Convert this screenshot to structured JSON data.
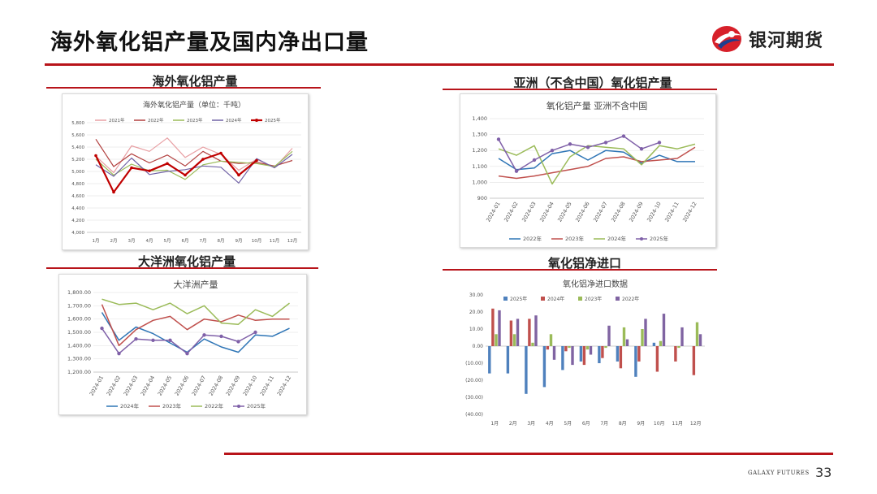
{
  "header": {
    "title": "海外氧化铝产量及国内净出口量"
  },
  "logo": {
    "text": "银河期货",
    "colors": {
      "red": "#d7202a",
      "blue": "#1d3f8f"
    }
  },
  "footer": {
    "brand": "GALAXY FUTURES",
    "page_number": "33"
  },
  "sections": [
    {
      "title": "海外氧化铝产量"
    },
    {
      "title": "亚洲（不含中国）氧化铝产量"
    },
    {
      "title": "大洋洲氧化铝产量"
    },
    {
      "title": "氧化铝净进口"
    }
  ],
  "chart_data": [
    {
      "type": "line",
      "title": "海外氧化铝产量（单位：千吨）",
      "categories": [
        "1月",
        "2月",
        "3月",
        "4月",
        "5月",
        "6月",
        "7月",
        "8月",
        "9月",
        "10月",
        "11月",
        "12月"
      ],
      "ylim": [
        4000,
        5800
      ],
      "yticks": [
        "4,000",
        "4,200",
        "4,400",
        "4,600",
        "4,800",
        "5,000",
        "5,200",
        "5,400",
        "5,600",
        "5,800"
      ],
      "legend": "top",
      "series": [
        {
          "name": "2021年",
          "color": "#e8a0a4",
          "width": 1.2,
          "marker": false,
          "values": [
            5250,
            4980,
            5420,
            5330,
            5550,
            5230,
            5400,
            5280,
            5020,
            5200,
            5060,
            5380
          ]
        },
        {
          "name": "2022年",
          "color": "#b2403f",
          "width": 1.2,
          "marker": false,
          "values": [
            5530,
            5080,
            5290,
            5140,
            5270,
            5090,
            5330,
            5170,
            5130,
            5150,
            5090,
            5180
          ]
        },
        {
          "name": "2023年",
          "color": "#9bbb59",
          "width": 1.2,
          "marker": false,
          "values": [
            5200,
            4940,
            5120,
            5010,
            5020,
            4870,
            5110,
            5170,
            5150,
            5130,
            5080,
            5330
          ]
        },
        {
          "name": "2024年",
          "color": "#7162a6",
          "width": 1.2,
          "marker": false,
          "values": [
            5110,
            4920,
            5220,
            4950,
            5000,
            5030,
            5090,
            5070,
            4810,
            5210,
            5060,
            5280
          ]
        },
        {
          "name": "2025年",
          "color": "#c00000",
          "width": 2.2,
          "marker": true,
          "values": [
            5260,
            4660,
            5060,
            5010,
            5130,
            4940,
            5200,
            5300,
            4940,
            5180,
            null,
            null
          ]
        }
      ]
    },
    {
      "type": "line",
      "title": "氧化铝产量 亚洲不含中国",
      "categories": [
        "2024-01",
        "2024-02",
        "2024-03",
        "2024-04",
        "2024-05",
        "2024-06",
        "2024-07",
        "2024-08",
        "2024-09",
        "2024-10",
        "2024-11",
        "2024-12"
      ],
      "ylim": [
        900,
        1400
      ],
      "yticks": [
        "900",
        "1,000",
        "1,100",
        "1,200",
        "1,300",
        "1,400"
      ],
      "legend": "bottom",
      "series": [
        {
          "name": "2022年",
          "color": "#2e75b6",
          "width": 1.5,
          "marker": false,
          "values": [
            1150,
            1080,
            1090,
            1180,
            1200,
            1140,
            1200,
            1190,
            1120,
            1170,
            1130,
            1130
          ]
        },
        {
          "name": "2023年",
          "color": "#c0504d",
          "width": 1.5,
          "marker": false,
          "values": [
            1040,
            1025,
            1040,
            1060,
            1080,
            1100,
            1150,
            1160,
            1130,
            1140,
            1150,
            1220
          ]
        },
        {
          "name": "2024年",
          "color": "#9bbb59",
          "width": 1.5,
          "marker": false,
          "values": [
            1210,
            1170,
            1230,
            990,
            1160,
            1230,
            1220,
            1210,
            1110,
            1230,
            1210,
            1240
          ]
        },
        {
          "name": "2025年",
          "color": "#7f60a8",
          "width": 1.5,
          "marker": true,
          "values": [
            1270,
            1070,
            1140,
            1200,
            1240,
            1220,
            1250,
            1290,
            1210,
            1250,
            null,
            null
          ]
        }
      ]
    },
    {
      "type": "line",
      "title": "大洋洲产量",
      "categories": [
        "2024-01",
        "2024-02",
        "2024-03",
        "2024-04",
        "2024-05",
        "2024-06",
        "2024-07",
        "2024-08",
        "2024-09",
        "2024-10",
        "2024-11",
        "2024-12"
      ],
      "ylim": [
        1200,
        1800
      ],
      "yticks": [
        "1,200.00",
        "1,300.00",
        "1,400.00",
        "1,500.00",
        "1,600.00",
        "1,700.00",
        "1,800.00"
      ],
      "legend": "bottom",
      "series": [
        {
          "name": "2024年",
          "color": "#2e75b6",
          "width": 1.5,
          "marker": false,
          "values": [
            1650,
            1440,
            1540,
            1490,
            1420,
            1350,
            1450,
            1390,
            1350,
            1480,
            1470,
            1530
          ]
        },
        {
          "name": "2023年",
          "color": "#c0504d",
          "width": 1.5,
          "marker": false,
          "values": [
            1710,
            1400,
            1520,
            1590,
            1620,
            1520,
            1600,
            1580,
            1630,
            1590,
            1600,
            1600
          ]
        },
        {
          "name": "2022年",
          "color": "#9bbb59",
          "width": 1.5,
          "marker": false,
          "values": [
            1750,
            1710,
            1720,
            1670,
            1720,
            1640,
            1700,
            1570,
            1560,
            1670,
            1620,
            1720
          ]
        },
        {
          "name": "2025年",
          "color": "#7f60a8",
          "width": 1.5,
          "marker": true,
          "values": [
            1530,
            1340,
            1450,
            1440,
            1440,
            1340,
            1480,
            1470,
            1430,
            1500,
            null,
            null
          ]
        }
      ]
    },
    {
      "type": "bar",
      "title": "氧化铝净进口数据",
      "categories": [
        "1月",
        "2月",
        "3月",
        "4月",
        "5月",
        "6月",
        "7月",
        "8月",
        "9月",
        "10月",
        "11月",
        "12月"
      ],
      "ylim": [
        -40,
        30
      ],
      "yticks": [
        "(40.00)",
        "(30.00)",
        "(20.00)",
        "(10.00)",
        "0.00",
        "10.00",
        "20.00",
        "30.00"
      ],
      "legend": "top",
      "series": [
        {
          "name": "2025年",
          "color": "#4f81bd",
          "values": [
            -16,
            -16,
            -28,
            -24,
            -14,
            -9,
            -10,
            -9,
            -18,
            2,
            null,
            null
          ]
        },
        {
          "name": "2024年",
          "color": "#c0504d",
          "values": [
            22,
            15,
            16,
            -2,
            -3,
            -11,
            -7,
            -13,
            -9,
            -15,
            -9,
            -17
          ]
        },
        {
          "name": "2023年",
          "color": "#9bbb59",
          "values": [
            7,
            7,
            2,
            7,
            -1,
            -2,
            -1,
            11,
            10,
            3,
            -1,
            14
          ]
        },
        {
          "name": "2022年",
          "color": "#8064a2",
          "values": [
            21,
            16,
            18,
            -8,
            -11,
            -5,
            12,
            4,
            16,
            19,
            11,
            7
          ]
        }
      ]
    }
  ]
}
